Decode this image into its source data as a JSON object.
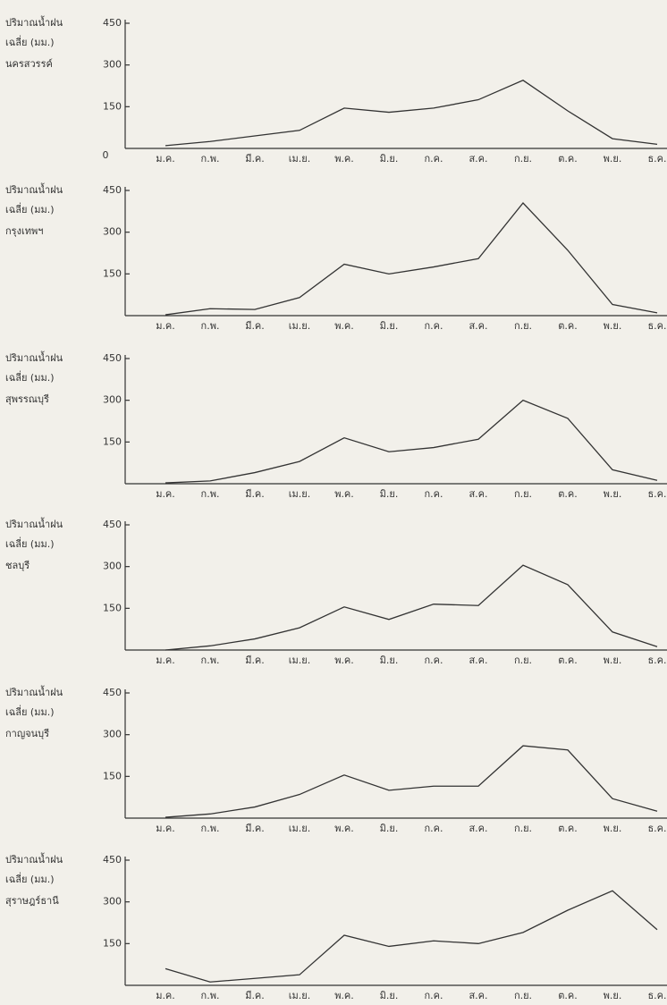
{
  "chart_data": [
    {
      "type": "line",
      "title": "นครสวรรค์",
      "ylabel": [
        "ปริมาณน้ำฝน",
        "เฉลี่ย (มม.)"
      ],
      "categories": [
        "ม.ค.",
        "ก.พ.",
        "มี.ค.",
        "เม.ย.",
        "พ.ค.",
        "มิ.ย.",
        "ก.ค.",
        "ส.ค.",
        "ก.ย.",
        "ต.ค.",
        "พ.ย.",
        "ธ.ค."
      ],
      "values": [
        10,
        25,
        45,
        65,
        145,
        130,
        145,
        175,
        245,
        135,
        35,
        15
      ],
      "color": "#333333",
      "ylim": [
        0,
        450
      ],
      "yticks": [
        0,
        150,
        300,
        450
      ]
    },
    {
      "type": "line",
      "title": "กรุงเทพฯ",
      "ylabel": [
        "ปริมาณน้ำฝน",
        "เฉลี่ย (มม.)"
      ],
      "categories": [
        "ม.ค.",
        "ก.พ.",
        "มี.ค.",
        "เม.ย.",
        "พ.ค.",
        "มิ.ย.",
        "ก.ค.",
        "ส.ค.",
        "ก.ย.",
        "ต.ค.",
        "พ.ย.",
        "ธ.ค."
      ],
      "values": [
        3,
        25,
        22,
        65,
        185,
        150,
        175,
        205,
        405,
        235,
        40,
        10
      ],
      "color": "#333333",
      "ylim": [
        0,
        450
      ],
      "yticks": [
        150,
        300,
        450
      ]
    },
    {
      "type": "line",
      "title": "สุพรรณบุรี",
      "ylabel": [
        "ปริมาณน้ำฝน",
        "เฉลี่ย (มม.)"
      ],
      "categories": [
        "ม.ค.",
        "ก.พ.",
        "มี.ค.",
        "เม.ย.",
        "พ.ค.",
        "มิ.ย.",
        "ก.ค.",
        "ส.ค.",
        "ก.ย.",
        "ต.ค.",
        "พ.ย.",
        "ธ.ค."
      ],
      "values": [
        3,
        10,
        40,
        80,
        165,
        115,
        130,
        160,
        300,
        235,
        50,
        12
      ],
      "color": "#333333",
      "ylim": [
        0,
        450
      ],
      "yticks": [
        150,
        300,
        450
      ]
    },
    {
      "type": "line",
      "title": "ชลบุรี",
      "ylabel": [
        "ปริมาณน้ำฝน",
        "เฉลี่ย (มม.)"
      ],
      "categories": [
        "ม.ค.",
        "ก.พ.",
        "มี.ค.",
        "เม.ย.",
        "พ.ค.",
        "มิ.ย.",
        "ก.ค.",
        "ส.ค.",
        "ก.ย.",
        "ต.ค.",
        "พ.ย.",
        "ธ.ค."
      ],
      "values": [
        0,
        15,
        40,
        80,
        155,
        110,
        165,
        160,
        305,
        235,
        65,
        12
      ],
      "color": "#333333",
      "ylim": [
        0,
        450
      ],
      "yticks": [
        150,
        300,
        450
      ]
    },
    {
      "type": "line",
      "title": "กาญจนบุรี",
      "ylabel": [
        "ปริมาณน้ำฝน",
        "เฉลี่ย (มม.)"
      ],
      "categories": [
        "ม.ค.",
        "ก.พ.",
        "มี.ค.",
        "เม.ย.",
        "พ.ค.",
        "มิ.ย.",
        "ก.ค.",
        "ส.ค.",
        "ก.ย.",
        "ต.ค.",
        "พ.ย.",
        "ธ.ค."
      ],
      "values": [
        3,
        15,
        40,
        85,
        155,
        100,
        115,
        115,
        260,
        245,
        70,
        25
      ],
      "color": "#333333",
      "ylim": [
        0,
        450
      ],
      "yticks": [
        150,
        300,
        450
      ]
    },
    {
      "type": "line",
      "title": "สุราษฎร์ธานี",
      "ylabel": [
        "ปริมาณน้ำฝน",
        "เฉลี่ย (มม.)"
      ],
      "categories": [
        "ม.ค.",
        "ก.พ.",
        "มี.ค.",
        "เม.ย.",
        "พ.ค.",
        "มิ.ย.",
        "ก.ค.",
        "ส.ค.",
        "ก.ย.",
        "ต.ค.",
        "พ.ย.",
        "ธ.ค."
      ],
      "values": [
        60,
        12,
        25,
        38,
        180,
        140,
        160,
        150,
        190,
        270,
        340,
        200
      ],
      "color": "#333333",
      "ylim": [
        0,
        450
      ],
      "yticks": [
        150,
        300,
        450
      ]
    }
  ]
}
